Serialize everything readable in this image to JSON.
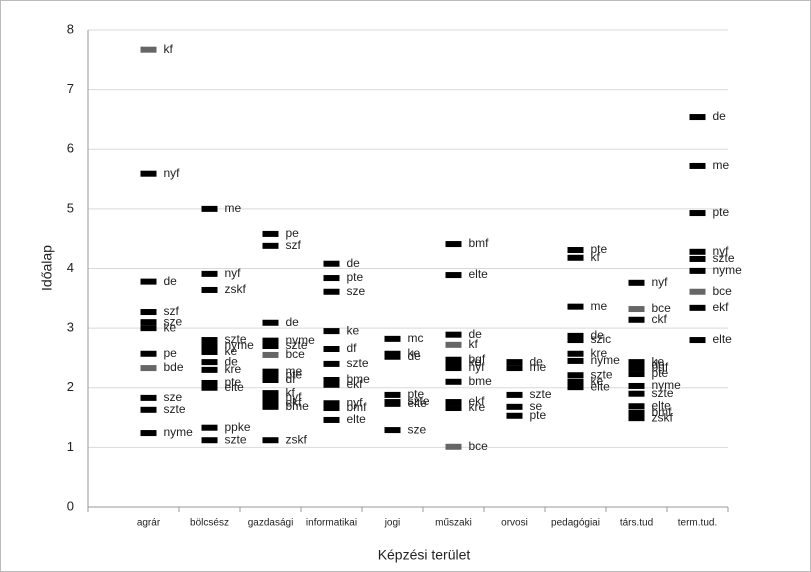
{
  "chart_data": {
    "type": "strip",
    "y_label": "Időalap",
    "x_label": "Képzési terület",
    "ylim": [
      0,
      8
    ],
    "yticks": [
      0,
      1,
      2,
      3,
      4,
      5,
      6,
      7,
      8
    ],
    "grid": true,
    "color": "#000000",
    "categories": [
      "agrár",
      "bölcsész",
      "gazdasági",
      "informatikai",
      "jogi",
      "műszaki",
      "orvosi",
      "pedagógiai",
      "társ.tud",
      "term.tud."
    ],
    "points": [
      [
        {
          "label": "kf",
          "value": 7.67,
          "color": "#666666"
        },
        {
          "label": "nyf",
          "value": 5.59
        },
        {
          "label": "de",
          "value": 3.78
        },
        {
          "label": "szf",
          "value": 3.27
        },
        {
          "label": "sze",
          "value": 3.1
        },
        {
          "label": "ke",
          "value": 3.0
        },
        {
          "label": "pe",
          "value": 2.57
        },
        {
          "label": "bde",
          "value": 2.33,
          "color": "#666666"
        },
        {
          "label": "sze",
          "value": 1.83
        },
        {
          "label": "szte",
          "value": 1.63
        },
        {
          "label": "nyme",
          "value": 1.24
        }
      ],
      [
        {
          "label": "me",
          "value": 5.0
        },
        {
          "label": "nyf",
          "value": 3.91
        },
        {
          "label": "zskf",
          "value": 3.64
        },
        {
          "label": "szte",
          "value": 2.8
        },
        {
          "label": "nyme",
          "value": 2.7
        },
        {
          "label": "ke",
          "value": 2.6
        },
        {
          "label": "de",
          "value": 2.43
        },
        {
          "label": "kre",
          "value": 2.3
        },
        {
          "label": "pte",
          "value": 2.08
        },
        {
          "label": "elte",
          "value": 2.0
        },
        {
          "label": "ppke",
          "value": 1.33
        },
        {
          "label": "szte",
          "value": 1.12
        }
      ],
      [
        {
          "label": "pe",
          "value": 4.58
        },
        {
          "label": "szf",
          "value": 4.38
        },
        {
          "label": "de",
          "value": 3.09
        },
        {
          "label": "nyme",
          "value": 2.79
        },
        {
          "label": "szte",
          "value": 2.7
        },
        {
          "label": "bce",
          "value": 2.55,
          "color": "#666666"
        },
        {
          "label": "me",
          "value": 2.27
        },
        {
          "label": "pte",
          "value": 2.21
        },
        {
          "label": "df",
          "value": 2.13
        },
        {
          "label": "kf",
          "value": 1.91
        },
        {
          "label": "nyf",
          "value": 1.83
        },
        {
          "label": "ekf",
          "value": 1.74
        },
        {
          "label": "bme",
          "value": 1.68
        },
        {
          "label": "zskf",
          "value": 1.12
        }
      ],
      [
        {
          "label": "de",
          "value": 4.08
        },
        {
          "label": "pte",
          "value": 3.84
        },
        {
          "label": "sze",
          "value": 3.61
        },
        {
          "label": "ke",
          "value": 2.95
        },
        {
          "label": "df",
          "value": 2.65
        },
        {
          "label": "szte",
          "value": 2.4
        },
        {
          "label": "bme",
          "value": 2.13
        },
        {
          "label": "ekf",
          "value": 2.05
        },
        {
          "label": "nyf",
          "value": 1.74
        },
        {
          "label": "bmf",
          "value": 1.66
        },
        {
          "label": "elte",
          "value": 1.46
        }
      ],
      [
        {
          "label": "mc",
          "value": 2.82
        },
        {
          "label": "ke",
          "value": 2.57
        },
        {
          "label": "de",
          "value": 2.52
        },
        {
          "label": "pte",
          "value": 1.88
        },
        {
          "label": "szte",
          "value": 1.76
        },
        {
          "label": "elte",
          "value": 1.73
        },
        {
          "label": "sze",
          "value": 1.29
        }
      ],
      [
        {
          "label": "bmf",
          "value": 4.41
        },
        {
          "label": "elte",
          "value": 3.89
        },
        {
          "label": "de",
          "value": 2.89
        },
        {
          "label": "kf",
          "value": 2.72,
          "color": "#666666"
        },
        {
          "label": "bgf",
          "value": 2.47
        },
        {
          "label": "ke",
          "value": 2.42
        },
        {
          "label": "nyf",
          "value": 2.33
        },
        {
          "label": "bme",
          "value": 2.1
        },
        {
          "label": "ekf",
          "value": 1.76
        },
        {
          "label": "kre",
          "value": 1.66
        },
        {
          "label": "bce",
          "value": 1.01,
          "color": "#666666"
        }
      ],
      [
        {
          "label": "de",
          "value": 2.43
        },
        {
          "label": "me",
          "value": 2.33
        },
        {
          "label": "szte",
          "value": 1.88
        },
        {
          "label": "se",
          "value": 1.68
        },
        {
          "label": "pte",
          "value": 1.53
        }
      ],
      [
        {
          "label": "pte",
          "value": 4.31
        },
        {
          "label": "kf",
          "value": 4.18
        },
        {
          "label": "me",
          "value": 3.36
        },
        {
          "label": "de",
          "value": 2.87
        },
        {
          "label": "szic",
          "value": 2.8
        },
        {
          "label": "kre",
          "value": 2.57
        },
        {
          "label": "nyme",
          "value": 2.45
        },
        {
          "label": "szte",
          "value": 2.21
        },
        {
          "label": "ke",
          "value": 2.1
        },
        {
          "label": "elte",
          "value": 2.01
        }
      ],
      [
        {
          "label": "nyf",
          "value": 3.76
        },
        {
          "label": "bce",
          "value": 3.32,
          "color": "#666666"
        },
        {
          "label": "ckf",
          "value": 3.14
        },
        {
          "label": "ke",
          "value": 2.43
        },
        {
          "label": "de",
          "value": 2.38
        },
        {
          "label": "bgf",
          "value": 2.33
        },
        {
          "label": "pte",
          "value": 2.23
        },
        {
          "label": "nyme",
          "value": 2.03
        },
        {
          "label": "szte",
          "value": 1.9
        },
        {
          "label": "elte",
          "value": 1.69
        },
        {
          "label": "bmf",
          "value": 1.58
        },
        {
          "label": "zskf",
          "value": 1.49
        }
      ],
      [
        {
          "label": "de",
          "value": 6.54
        },
        {
          "label": "me",
          "value": 5.72
        },
        {
          "label": "pte",
          "value": 4.93
        },
        {
          "label": "nyf",
          "value": 4.28
        },
        {
          "label": "szte",
          "value": 4.16
        },
        {
          "label": "nyme",
          "value": 3.96
        },
        {
          "label": "bce",
          "value": 3.61,
          "color": "#666666"
        },
        {
          "label": "ekf",
          "value": 3.34
        },
        {
          "label": "elte",
          "value": 2.8
        }
      ]
    ]
  }
}
